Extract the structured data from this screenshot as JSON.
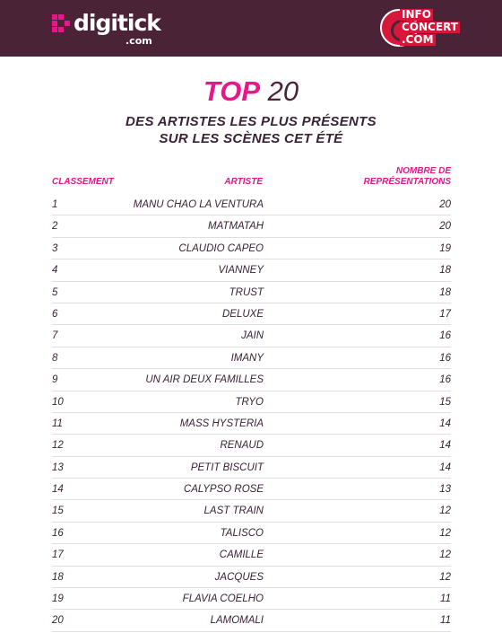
{
  "header": {
    "digitick_logo": "digitick",
    "digitick_domain": ".com",
    "infoconcert_logo": [
      "INFO",
      "CONCERT",
      ".COM"
    ]
  },
  "title": {
    "top": "TOP",
    "number": "20"
  },
  "subtitle": {
    "line1": "DES ARTISTES LES PLUS PRÉSENTS",
    "line2": "SUR LES SCÈNES CET ÉTÉ"
  },
  "columns": {
    "rank": "CLASSEMENT",
    "artist": "ARTISTE",
    "count_line1": "NOMBRE DE",
    "count_line2": "REPRÉSENTATIONS"
  },
  "rows": [
    {
      "rank": "1",
      "artist": "MANU CHAO LA VENTURA",
      "count": "20"
    },
    {
      "rank": "2",
      "artist": "MATMATAH",
      "count": "20"
    },
    {
      "rank": "3",
      "artist": "CLAUDIO CAPEO",
      "count": "19"
    },
    {
      "rank": "4",
      "artist": "VIANNEY",
      "count": "18"
    },
    {
      "rank": "5",
      "artist": "TRUST",
      "count": "18"
    },
    {
      "rank": "6",
      "artist": "DELUXE",
      "count": "17"
    },
    {
      "rank": "7",
      "artist": "JAIN",
      "count": "16"
    },
    {
      "rank": "8",
      "artist": "IMANY",
      "count": "16"
    },
    {
      "rank": "9",
      "artist": "UN AIR DEUX FAMILLES",
      "count": "16"
    },
    {
      "rank": "10",
      "artist": "TRYO",
      "count": "15"
    },
    {
      "rank": "11",
      "artist": "MASS HYSTERIA",
      "count": "14"
    },
    {
      "rank": "12",
      "artist": "RENAUD",
      "count": "14"
    },
    {
      "rank": "13",
      "artist": "PETIT BISCUIT",
      "count": "14"
    },
    {
      "rank": "14",
      "artist": "CALYPSO ROSE",
      "count": "13"
    },
    {
      "rank": "15",
      "artist": "LAST TRAIN",
      "count": "12"
    },
    {
      "rank": "16",
      "artist": "TALISCO",
      "count": "12"
    },
    {
      "rank": "17",
      "artist": "CAMILLE",
      "count": "12"
    },
    {
      "rank": "18",
      "artist": "JACQUES",
      "count": "12"
    },
    {
      "rank": "19",
      "artist": "FLAVIA COELHO",
      "count": "11"
    },
    {
      "rank": "20",
      "artist": "LAMOMALI",
      "count": "11"
    }
  ],
  "colors": {
    "header_bg": "#4a2336",
    "accent_pink": "#e8168a",
    "infoconcert_red": "#d6183a",
    "text_dark": "#3a2236"
  }
}
